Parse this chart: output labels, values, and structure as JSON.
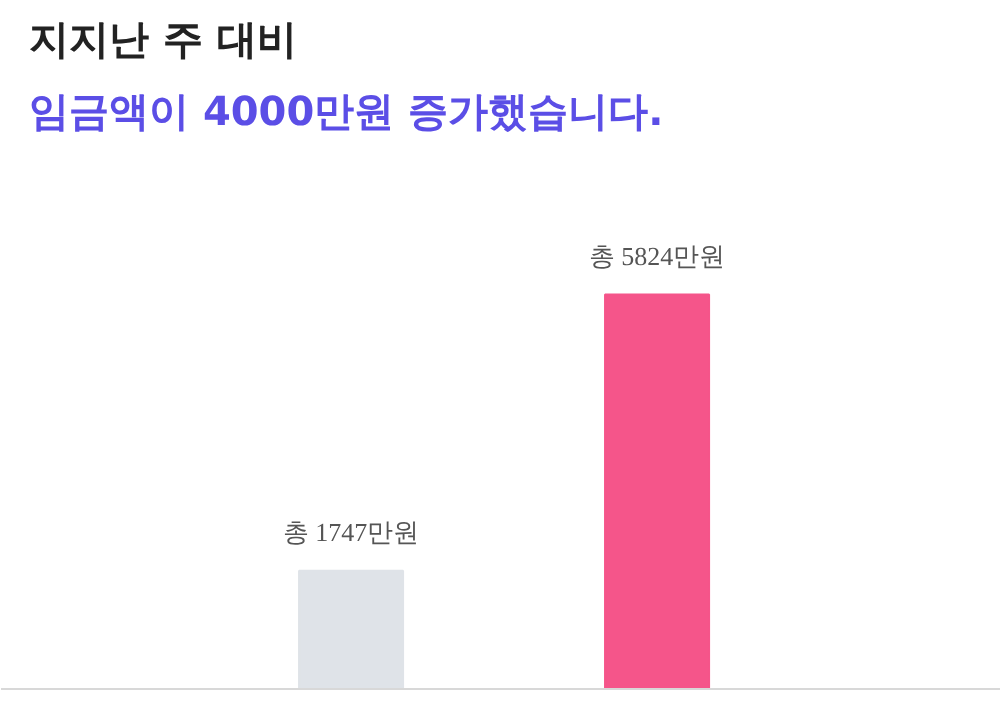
{
  "chart_data": {
    "type": "bar",
    "title": "지지난 주 대비",
    "subtitle": "임금액이 4000만원 증가했습니다.",
    "categories": [
      null,
      null
    ],
    "values": [
      1747,
      5824
    ],
    "colors": [
      "#dfe3e8",
      "#f5558a"
    ],
    "value_labels": [
      "총 1747만원",
      "총 5824만원"
    ]
  }
}
